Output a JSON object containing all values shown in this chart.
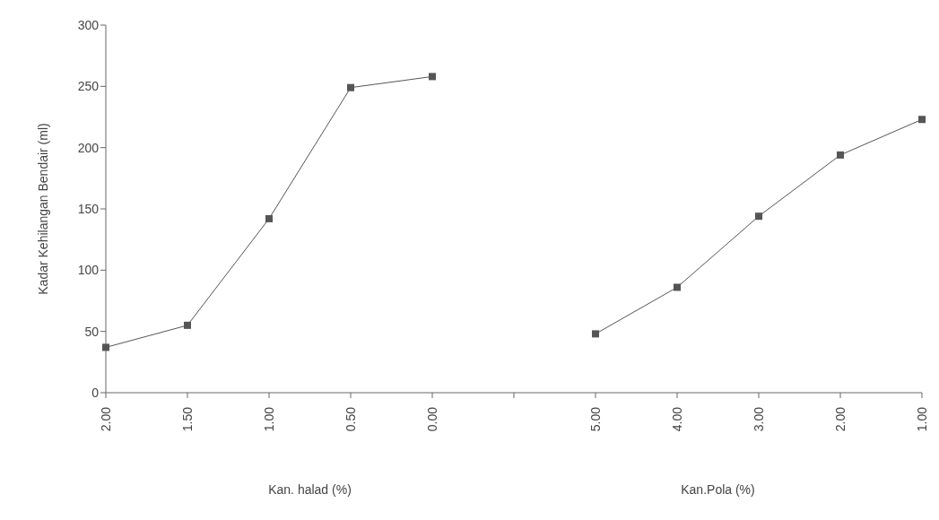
{
  "chart_data": {
    "type": "line",
    "ylabel": "Kadar Kehilangan Bendair (ml)",
    "categories": [
      "2.00",
      "1.50",
      "1.00",
      "0.50",
      "0.00",
      null,
      "5.00",
      "4.00",
      "3.00",
      "2.00",
      "1.00"
    ],
    "series": [
      {
        "color": "#555555",
        "values": [
          37,
          55,
          142,
          249,
          258,
          null,
          48,
          86,
          144,
          194,
          223
        ]
      }
    ],
    "ylim": [
      0,
      300
    ],
    "yticks": [
      0,
      50,
      100,
      150,
      200,
      250,
      300
    ],
    "grid": false,
    "legend": false,
    "marker": "square",
    "line_style": "solid",
    "annotations": [
      "Kan. halad (%)",
      "Kan.Pola (%)"
    ]
  }
}
